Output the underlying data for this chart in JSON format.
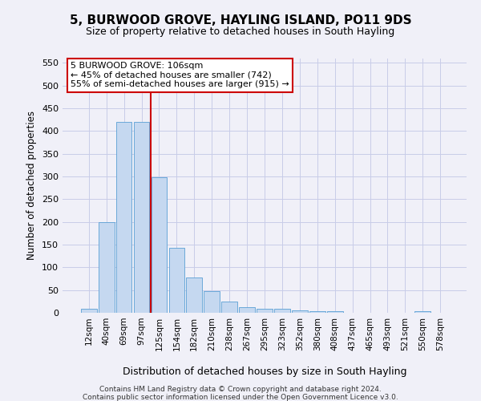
{
  "title": "5, BURWOOD GROVE, HAYLING ISLAND, PO11 9DS",
  "subtitle": "Size of property relative to detached houses in South Hayling",
  "xlabel": "Distribution of detached houses by size in South Hayling",
  "ylabel": "Number of detached properties",
  "categories": [
    "12sqm",
    "40sqm",
    "69sqm",
    "97sqm",
    "125sqm",
    "154sqm",
    "182sqm",
    "210sqm",
    "238sqm",
    "267sqm",
    "295sqm",
    "323sqm",
    "352sqm",
    "380sqm",
    "408sqm",
    "437sqm",
    "465sqm",
    "493sqm",
    "521sqm",
    "550sqm",
    "578sqm"
  ],
  "values": [
    8,
    200,
    420,
    420,
    298,
    142,
    77,
    48,
    24,
    12,
    8,
    8,
    6,
    3,
    3,
    0,
    0,
    0,
    0,
    4,
    0
  ],
  "bar_color": "#c5d8f0",
  "bar_edge_color": "#5a9fd4",
  "vline_x": 3.5,
  "vline_color": "#cc0000",
  "annotation_line1": "5 BURWOOD GROVE: 106sqm",
  "annotation_line2": "← 45% of detached houses are smaller (742)",
  "annotation_line3": "55% of semi-detached houses are larger (915) →",
  "annotation_box_color": "#ffffff",
  "annotation_box_edge_color": "#cc0000",
  "ylim": [
    0,
    560
  ],
  "yticks": [
    0,
    50,
    100,
    150,
    200,
    250,
    300,
    350,
    400,
    450,
    500,
    550
  ],
  "footer1": "Contains HM Land Registry data © Crown copyright and database right 2024.",
  "footer2": "Contains public sector information licensed under the Open Government Licence v3.0.",
  "bg_color": "#f0f0f8",
  "grid_color": "#c8cce8",
  "title_fontsize": 11,
  "subtitle_fontsize": 9
}
